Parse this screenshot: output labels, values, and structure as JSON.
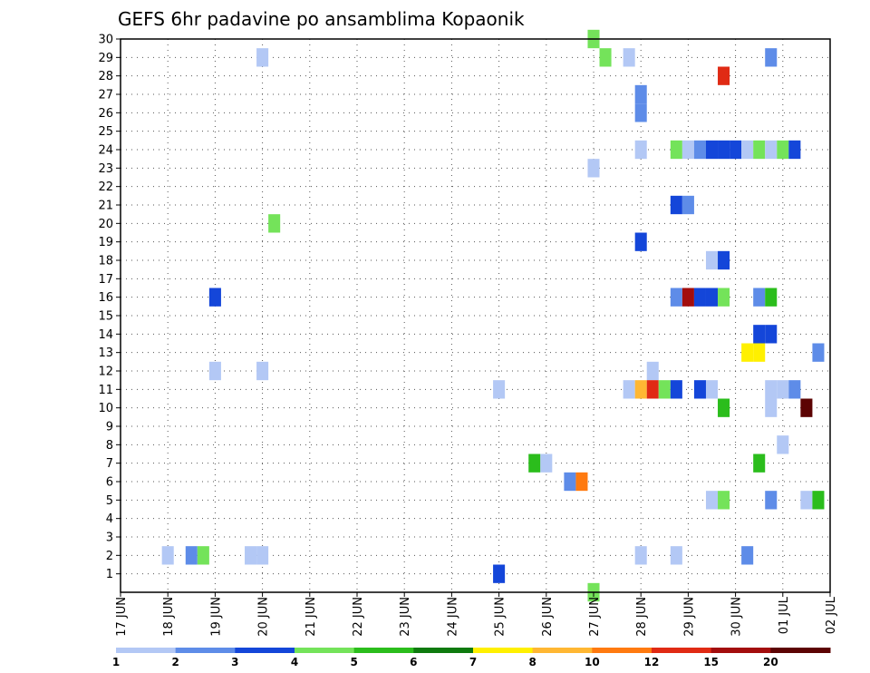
{
  "chart_data": {
    "type": "heatmap",
    "title": "GEFS 6hr padavine po ansamblima Kopaonik",
    "y_ticks": [
      "1",
      "2",
      "3",
      "4",
      "5",
      "6",
      "7",
      "8",
      "9",
      "10",
      "11",
      "12",
      "13",
      "14",
      "15",
      "16",
      "17",
      "18",
      "19",
      "20",
      "21",
      "22",
      "23",
      "24",
      "25",
      "26",
      "27",
      "28",
      "29",
      "30"
    ],
    "ylim": [
      0,
      30
    ],
    "x_ticks": [
      "17 JUN",
      "18 JUN",
      "19 JUN",
      "20 JUN",
      "21 JUN",
      "22 JUN",
      "23 JUN",
      "24 JUN",
      "25 JUN",
      "26 JUN",
      "27 JUN",
      "28 JUN",
      "29 JUN",
      "30 JUN",
      "01 JUL",
      "02 JUL"
    ],
    "xlim": [
      0,
      15
    ],
    "grid": true,
    "legend_position": "bottom",
    "legend_levels": [
      "1",
      "2",
      "3",
      "4",
      "5",
      "6",
      "7",
      "8",
      "10",
      "12",
      "15",
      "20"
    ],
    "legend_colors": [
      "#b3c8f5",
      "#5e8ce8",
      "#1446d9",
      "#74e35a",
      "#2bbd1c",
      "#0e7a0e",
      "#fff000",
      "#ffb733",
      "#ff7a10",
      "#e02a14",
      "#a30d0d",
      "#5c0303"
    ],
    "cells": [
      {
        "t": 3.0,
        "m": 29,
        "c": 0
      },
      {
        "t": 10.0,
        "m": 30,
        "c": 3
      },
      {
        "t": 10.25,
        "m": 29,
        "c": 3
      },
      {
        "t": 10.75,
        "m": 29,
        "c": 0
      },
      {
        "t": 13.75,
        "m": 29,
        "c": 1
      },
      {
        "t": 12.75,
        "m": 28,
        "c": 9
      },
      {
        "t": 11.0,
        "m": 27,
        "c": 1
      },
      {
        "t": 11.0,
        "m": 26,
        "c": 1
      },
      {
        "t": 11.0,
        "m": 24,
        "c": 0
      },
      {
        "t": 11.75,
        "m": 24,
        "c": 3
      },
      {
        "t": 12.0,
        "m": 24,
        "c": 0
      },
      {
        "t": 12.25,
        "m": 24,
        "c": 1
      },
      {
        "t": 12.5,
        "m": 24,
        "c": 2
      },
      {
        "t": 12.75,
        "m": 24,
        "c": 2
      },
      {
        "t": 13.0,
        "m": 24,
        "c": 2
      },
      {
        "t": 13.25,
        "m": 24,
        "c": 0
      },
      {
        "t": 13.5,
        "m": 24,
        "c": 3
      },
      {
        "t": 13.75,
        "m": 24,
        "c": 0
      },
      {
        "t": 14.0,
        "m": 24,
        "c": 3
      },
      {
        "t": 14.25,
        "m": 24,
        "c": 2
      },
      {
        "t": 10.0,
        "m": 23,
        "c": 0
      },
      {
        "t": 11.75,
        "m": 21,
        "c": 2
      },
      {
        "t": 12.0,
        "m": 21,
        "c": 1
      },
      {
        "t": 3.25,
        "m": 20,
        "c": 3
      },
      {
        "t": 11.0,
        "m": 19,
        "c": 2
      },
      {
        "t": 12.5,
        "m": 18,
        "c": 0
      },
      {
        "t": 12.75,
        "m": 18,
        "c": 2
      },
      {
        "t": 2.0,
        "m": 16,
        "c": 2
      },
      {
        "t": 11.75,
        "m": 16,
        "c": 1
      },
      {
        "t": 12.0,
        "m": 16,
        "c": 10
      },
      {
        "t": 12.25,
        "m": 16,
        "c": 2
      },
      {
        "t": 12.5,
        "m": 16,
        "c": 2
      },
      {
        "t": 12.75,
        "m": 16,
        "c": 3
      },
      {
        "t": 13.5,
        "m": 16,
        "c": 1
      },
      {
        "t": 13.75,
        "m": 16,
        "c": 4
      },
      {
        "t": 13.5,
        "m": 14,
        "c": 2
      },
      {
        "t": 13.75,
        "m": 14,
        "c": 2
      },
      {
        "t": 13.25,
        "m": 13,
        "c": 6
      },
      {
        "t": 13.5,
        "m": 13,
        "c": 6
      },
      {
        "t": 14.75,
        "m": 13,
        "c": 1
      },
      {
        "t": 2.0,
        "m": 12,
        "c": 0
      },
      {
        "t": 3.0,
        "m": 12,
        "c": 0
      },
      {
        "t": 11.25,
        "m": 12,
        "c": 0
      },
      {
        "t": 8.0,
        "m": 11,
        "c": 0
      },
      {
        "t": 10.75,
        "m": 11,
        "c": 0
      },
      {
        "t": 11.0,
        "m": 11,
        "c": 7
      },
      {
        "t": 11.25,
        "m": 11,
        "c": 9
      },
      {
        "t": 11.5,
        "m": 11,
        "c": 3
      },
      {
        "t": 11.75,
        "m": 11,
        "c": 2
      },
      {
        "t": 12.25,
        "m": 11,
        "c": 2
      },
      {
        "t": 12.5,
        "m": 11,
        "c": 0
      },
      {
        "t": 13.75,
        "m": 11,
        "c": 0
      },
      {
        "t": 14.0,
        "m": 11,
        "c": 0
      },
      {
        "t": 14.25,
        "m": 11,
        "c": 1
      },
      {
        "t": 12.75,
        "m": 10,
        "c": 4
      },
      {
        "t": 13.75,
        "m": 10,
        "c": 0
      },
      {
        "t": 14.5,
        "m": 10,
        "c": 11
      },
      {
        "t": 14.0,
        "m": 8,
        "c": 0
      },
      {
        "t": 8.75,
        "m": 7,
        "c": 4
      },
      {
        "t": 9.0,
        "m": 7,
        "c": 0
      },
      {
        "t": 13.5,
        "m": 7,
        "c": 4
      },
      {
        "t": 9.5,
        "m": 6,
        "c": 1
      },
      {
        "t": 9.75,
        "m": 6,
        "c": 8
      },
      {
        "t": 12.5,
        "m": 5,
        "c": 0
      },
      {
        "t": 12.75,
        "m": 5,
        "c": 3
      },
      {
        "t": 13.75,
        "m": 5,
        "c": 1
      },
      {
        "t": 14.5,
        "m": 5,
        "c": 0
      },
      {
        "t": 14.75,
        "m": 5,
        "c": 4
      },
      {
        "t": 1.0,
        "m": 2,
        "c": 0
      },
      {
        "t": 1.5,
        "m": 2,
        "c": 1
      },
      {
        "t": 1.75,
        "m": 2,
        "c": 3
      },
      {
        "t": 2.75,
        "m": 2,
        "c": 0
      },
      {
        "t": 3.0,
        "m": 2,
        "c": 0
      },
      {
        "t": 11.0,
        "m": 2,
        "c": 0
      },
      {
        "t": 11.75,
        "m": 2,
        "c": 0
      },
      {
        "t": 13.25,
        "m": 2,
        "c": 1
      },
      {
        "t": 8.0,
        "m": 1,
        "c": 2
      },
      {
        "t": 10.0,
        "m": 0,
        "c": 3
      }
    ]
  }
}
